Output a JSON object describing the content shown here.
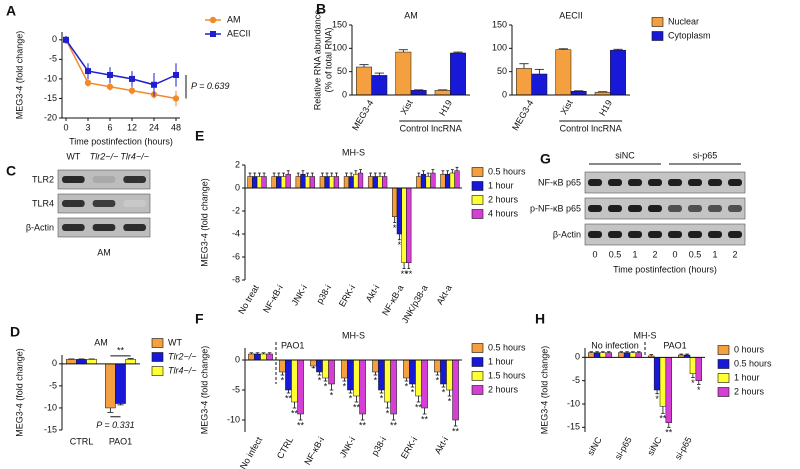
{
  "chart_data": [
    {
      "panel": "A",
      "type": "line",
      "y_label": "MEG3-4 (fold change)",
      "x_label": "Time postinfection (hours)",
      "categories": [
        "0",
        "3",
        "6",
        "12",
        "24",
        "48"
      ],
      "ylim": [
        -20,
        2
      ],
      "yticks": [
        0,
        -5,
        -10,
        -15,
        -20
      ],
      "series": [
        {
          "name": "AM",
          "color": "#f28a2b",
          "values": [
            0,
            -11,
            -12,
            -13,
            -14,
            -15
          ],
          "errors": [
            1,
            1,
            1,
            1,
            1,
            2
          ]
        },
        {
          "name": "AECII",
          "color": "#1f1fd0",
          "values": [
            0,
            -8,
            -9,
            -10,
            -11.5,
            -9
          ],
          "errors": [
            1,
            2,
            2,
            2,
            3,
            3
          ]
        }
      ],
      "annotations": [
        "P = 0.639"
      ]
    },
    {
      "panel": "B",
      "type": "bar",
      "y_label": [
        "Relative RNA abundance",
        "(% of total RNA)"
      ],
      "group_label": "Control lncRNA",
      "categories": [
        "MEG3-4",
        "Xist",
        "H19"
      ],
      "ylim": [
        0,
        150
      ],
      "yticks": [
        0,
        50,
        100,
        150
      ],
      "series": [
        {
          "name": "Nuclear",
          "color": "#f4a040"
        },
        {
          "name": "Cytoplasm",
          "color": "#1818d8"
        }
      ],
      "facets": [
        {
          "title": "AM",
          "series": [
            {
              "values": [
                60,
                92,
                10
              ],
              "errors": [
                5,
                5,
                1
              ]
            },
            {
              "values": [
                42,
                10,
                90
              ],
              "errors": [
                5,
                1,
                2
              ]
            }
          ]
        },
        {
          "title": "AECII",
          "series": [
            {
              "values": [
                57,
                97,
                6
              ],
              "errors": [
                10,
                2,
                1
              ]
            },
            {
              "values": [
                45,
                8,
                96
              ],
              "errors": [
                10,
                1,
                2
              ]
            }
          ]
        }
      ]
    },
    {
      "panel": "D",
      "type": "bar",
      "title": "AM",
      "y_label": "MEG3-4 (fold change)",
      "categories": [
        "CTRL",
        "PAO1"
      ],
      "ylim": [
        -15,
        2
      ],
      "yticks": [
        0,
        -5,
        -10,
        -15
      ],
      "series": [
        {
          "name": "WT",
          "color": "#f4a040",
          "values": [
            1,
            -10
          ],
          "errors": [
            0.1,
            1
          ]
        },
        {
          "name": "Tlr2−/−",
          "color": "#1818d8",
          "values": [
            1,
            -9
          ],
          "errors": [
            0.1,
            0.3
          ]
        },
        {
          "name": "Tlr4−/−",
          "color": "#ffff33",
          "values": [
            1,
            1
          ],
          "errors": [
            0.1,
            0.2
          ]
        }
      ],
      "annotations": [
        "**",
        "P = 0.331"
      ]
    },
    {
      "panel": "E",
      "type": "bar",
      "title": "MH-S",
      "y_label": "MEG3-4 (fold change)",
      "categories": [
        "No treat",
        "NF-κB-i",
        "JNK-i",
        "p38-i",
        "ERK-i",
        "Akt-i",
        "NF-κB-a",
        "JNK/p38-a",
        "Akt-a"
      ],
      "ylim": [
        -8,
        2
      ],
      "yticks": [
        2,
        0,
        -2,
        -4,
        -6,
        -8
      ],
      "series": [
        {
          "name": "0.5 hours",
          "color": "#f4a040",
          "values": [
            1,
            1,
            1,
            1,
            1,
            1,
            -2.5,
            1,
            1.2
          ],
          "errors": [
            0.3,
            0.3,
            0.3,
            0.3,
            0.3,
            0.3,
            0.5,
            0.3,
            0.3
          ],
          "significance": [
            null,
            null,
            null,
            null,
            null,
            null,
            "*",
            null,
            null
          ]
        },
        {
          "name": "1 hour",
          "color": "#1818d8",
          "values": [
            1,
            1,
            1.2,
            1,
            1,
            1,
            -4,
            1.2,
            1.2
          ],
          "errors": [
            0.3,
            0.3,
            0.3,
            0.3,
            0.3,
            0.3,
            0.5,
            0.3,
            0.3
          ],
          "significance": [
            null,
            null,
            null,
            null,
            null,
            null,
            "*",
            null,
            null
          ]
        },
        {
          "name": "2 hours",
          "color": "#ffff33",
          "values": [
            1,
            1,
            1,
            1,
            1.2,
            1,
            -6.5,
            1,
            1.3
          ],
          "errors": [
            0.3,
            0.3,
            0.3,
            0.3,
            0.3,
            0.3,
            0.5,
            0.3,
            0.3
          ],
          "significance": [
            null,
            null,
            null,
            null,
            null,
            null,
            "**",
            null,
            null
          ]
        },
        {
          "name": "4 hours",
          "color": "#d63fd6",
          "values": [
            1,
            1.2,
            1,
            1,
            1.3,
            1,
            -6.5,
            1.3,
            1.5
          ],
          "errors": [
            0.3,
            0.3,
            0.3,
            0.3,
            0.3,
            0.3,
            0.5,
            0.3,
            0.3
          ],
          "significance": [
            null,
            null,
            null,
            null,
            null,
            null,
            "**",
            null,
            null
          ]
        }
      ]
    },
    {
      "panel": "F",
      "type": "bar",
      "title": "MH-S",
      "y_label": "MEG3-4 (fold change)",
      "categories": [
        "No infect",
        "CTRL",
        "NF-κB-i",
        "JNK-i",
        "p38-i",
        "ERK-i",
        "Akt-i"
      ],
      "ylim": [
        -12,
        2
      ],
      "yticks": [
        0,
        -5,
        -10
      ],
      "series": [
        {
          "name": "0.5 hours",
          "color": "#f4a040",
          "values": [
            1,
            -2,
            -1,
            -3,
            -2,
            -3,
            -2
          ],
          "errors": [
            0.2,
            0.5,
            0.3,
            0.5,
            0.5,
            0.5,
            0.5
          ],
          "significance": [
            null,
            "*",
            null,
            "*",
            "*",
            "*",
            "*"
          ]
        },
        {
          "name": "1 hour",
          "color": "#1818d8",
          "values": [
            1,
            -5,
            -2,
            -5,
            -5,
            -4,
            -4
          ],
          "errors": [
            0.2,
            0.5,
            0.5,
            0.5,
            0.5,
            0.5,
            0.5
          ],
          "significance": [
            null,
            "**",
            "*",
            "*",
            "*",
            "*",
            "*"
          ]
        },
        {
          "name": "1.5 hours",
          "color": "#ffff33",
          "values": [
            1,
            -7,
            -3,
            -6,
            -7,
            -6,
            -5
          ],
          "errors": [
            0.2,
            1,
            0.5,
            1,
            1,
            1,
            1
          ],
          "significance": [
            null,
            "**",
            "*",
            "**",
            "*",
            "**",
            "*"
          ]
        },
        {
          "name": "2 hours",
          "color": "#d63fd6",
          "values": [
            1,
            -9,
            -4,
            -9,
            -9,
            -8,
            -10
          ],
          "errors": [
            0.2,
            1,
            1,
            1,
            1,
            1,
            1
          ],
          "significance": [
            null,
            "**",
            "*",
            "**",
            "**",
            "**",
            "**"
          ]
        }
      ],
      "annotations": [
        "PAO1"
      ]
    },
    {
      "panel": "H",
      "type": "bar",
      "title": "MH-S",
      "y_label": "MEG3-4 (fold change)",
      "categories": [
        "siNC",
        "si-p65",
        "siNC",
        "si-p65"
      ],
      "ylim": [
        -16,
        2
      ],
      "yticks": [
        0,
        -5,
        -10,
        -15
      ],
      "series": [
        {
          "name": "0 hours",
          "color": "#f4a040",
          "values": [
            1,
            1,
            0.3,
            0.5
          ],
          "errors": [
            0.2,
            0.2,
            0.3,
            0.2
          ],
          "significance": [
            null,
            null,
            null,
            null
          ]
        },
        {
          "name": "0.5 hours",
          "color": "#1818d8",
          "values": [
            1,
            1,
            -7,
            0.5
          ],
          "errors": [
            0.2,
            0.2,
            0.8,
            0.2
          ],
          "significance": [
            null,
            null,
            "*",
            null
          ]
        },
        {
          "name": "1 hour",
          "color": "#ffff33",
          "values": [
            1,
            1,
            -10.5,
            -3.5
          ],
          "errors": [
            0.2,
            0.2,
            1.5,
            0.8
          ],
          "significance": [
            null,
            null,
            "**",
            "*"
          ]
        },
        {
          "name": "2 hours",
          "color": "#d63fd6",
          "values": [
            1,
            1,
            -14,
            -5
          ],
          "errors": [
            0.2,
            0.2,
            1,
            0.8
          ],
          "significance": [
            null,
            null,
            "**",
            "*"
          ]
        }
      ],
      "annotations": [
        "No infection",
        "PAO1"
      ]
    }
  ],
  "blots": [
    {
      "panel": "C",
      "columns": [
        "WT",
        "Tlr2−/−",
        "Tlr4−/−"
      ],
      "rows": [
        "TLR2",
        "TLR4",
        "β-Actin"
      ],
      "footer": "AM"
    },
    {
      "panel": "G",
      "groups": [
        "siNC",
        "si-p65"
      ],
      "rows": [
        "NF-κB p65",
        "p-NF-κB p65",
        "β-Actin"
      ],
      "lanes": [
        "0",
        "0.5",
        "1",
        "2",
        "0",
        "0.5",
        "1",
        "2"
      ],
      "x_label": "Time postinfection (hours)"
    }
  ]
}
